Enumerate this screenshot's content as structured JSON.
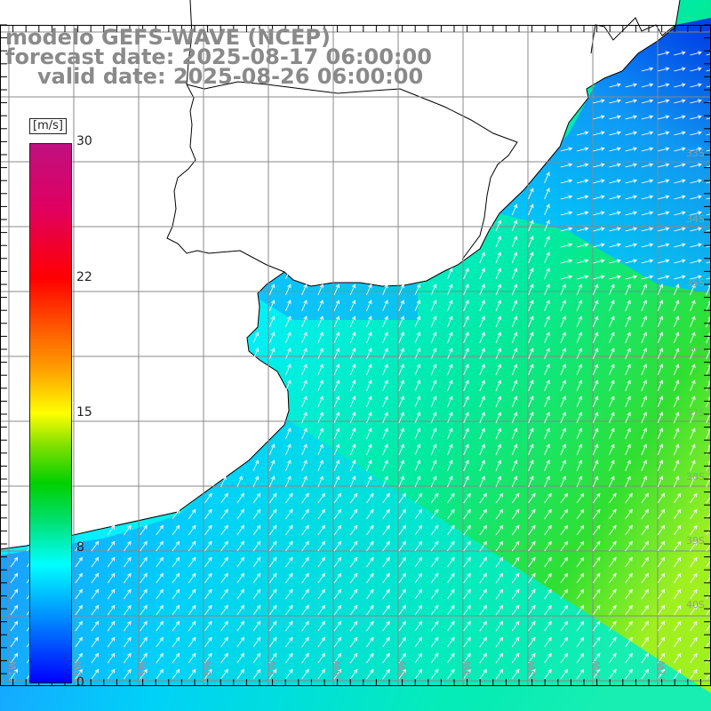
{
  "header": {
    "line1": "modelo GEFS-WAVE (NCEP)",
    "line2": "forecast date: 2025-08-17 06:00:00",
    "line3": "valid date: 2025-08-26 06:00:00"
  },
  "colorbar": {
    "unit": "[m/s]",
    "ticks": [
      "30",
      "22",
      "15",
      "8",
      "0"
    ],
    "tick_values": [
      30,
      22,
      15,
      8,
      0
    ],
    "range": [
      0,
      30
    ],
    "colors": [
      "#0000ff",
      "#0080ff",
      "#00ffff",
      "#00d000",
      "#ffff00",
      "#ff6000",
      "#ff0000",
      "#c01080"
    ]
  },
  "map": {
    "latitude_labels": [
      "33S",
      "34S",
      "35S",
      "36S",
      "37S",
      "38S",
      "39S",
      "40S"
    ],
    "longitude_labels": [
      "61W",
      "60W",
      "59W",
      "58W",
      "57W",
      "56W",
      "55W",
      "54W",
      "53W",
      "52W",
      "51W"
    ],
    "colors": {
      "land": "#ffffff",
      "coast": "#000000",
      "grid": "#888888",
      "arrow": "#ffffff",
      "label": "#999999"
    }
  }
}
